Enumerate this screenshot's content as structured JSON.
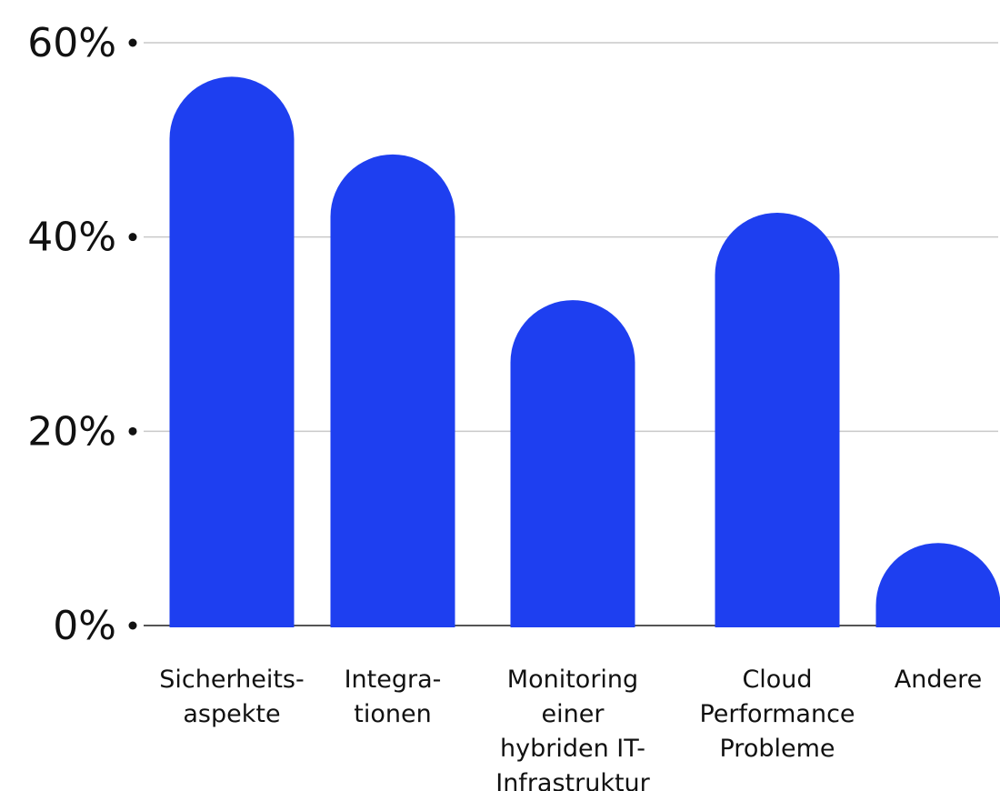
{
  "chart_data": {
    "type": "bar",
    "title": "",
    "xlabel": "",
    "ylabel": "",
    "ylim": [
      0,
      60
    ],
    "yticks": [
      {
        "value": 0,
        "label": "0%"
      },
      {
        "value": 20,
        "label": "20%"
      },
      {
        "value": 40,
        "label": "40%"
      },
      {
        "value": 60,
        "label": "60%"
      }
    ],
    "grid": true,
    "legend": "none",
    "bar_color": "#1e3ff0",
    "grid_color": "#c9c9c9",
    "categories": [
      {
        "lines": [
          "Sicherheits-",
          "aspekte"
        ]
      },
      {
        "lines": [
          "Integra-",
          "tionen"
        ]
      },
      {
        "lines": [
          "Monitoring",
          "einer",
          "hybriden IT-",
          "Infrastruktur"
        ]
      },
      {
        "lines": [
          "Cloud",
          "Performance",
          "Probleme"
        ]
      },
      {
        "lines": [
          "Andere"
        ]
      }
    ],
    "values": [
      56.5,
      48.5,
      33.5,
      42.5,
      8.5
    ]
  }
}
